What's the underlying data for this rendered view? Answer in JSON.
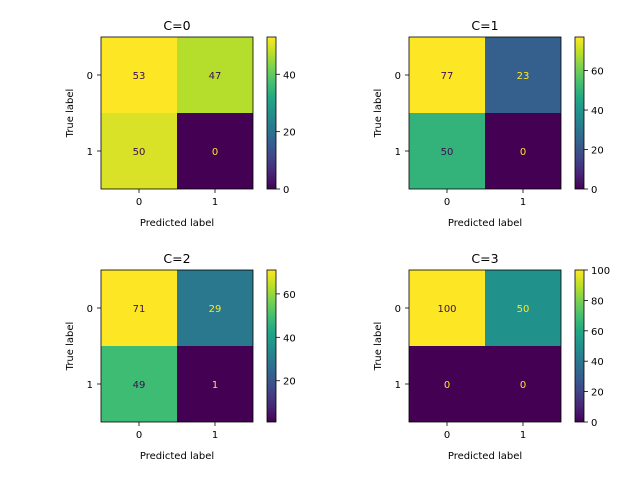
{
  "chart_data": [
    {
      "type": "heatmap",
      "title": "C=0",
      "xlabel": "Predicted label",
      "ylabel": "True label",
      "x_categories": [
        "0",
        "1"
      ],
      "y_categories": [
        "0",
        "1"
      ],
      "matrix": [
        [
          53,
          47
        ],
        [
          50,
          0
        ]
      ],
      "colormap": "viridis",
      "color_range": [
        0,
        53
      ],
      "colorbar_ticks": [
        0,
        20,
        40
      ]
    },
    {
      "type": "heatmap",
      "title": "C=1",
      "xlabel": "Predicted label",
      "ylabel": "True label",
      "x_categories": [
        "0",
        "1"
      ],
      "y_categories": [
        "0",
        "1"
      ],
      "matrix": [
        [
          77,
          23
        ],
        [
          50,
          0
        ]
      ],
      "colormap": "viridis",
      "color_range": [
        0,
        77
      ],
      "colorbar_ticks": [
        0,
        20,
        40,
        60
      ]
    },
    {
      "type": "heatmap",
      "title": "C=2",
      "xlabel": "Predicted label",
      "ylabel": "True label",
      "x_categories": [
        "0",
        "1"
      ],
      "y_categories": [
        "0",
        "1"
      ],
      "matrix": [
        [
          71,
          29
        ],
        [
          49,
          1
        ]
      ],
      "colormap": "viridis",
      "color_range": [
        1,
        71
      ],
      "colorbar_ticks": [
        20,
        40,
        60
      ]
    },
    {
      "type": "heatmap",
      "title": "C=3",
      "xlabel": "Predicted label",
      "ylabel": "True label",
      "x_categories": [
        "0",
        "1"
      ],
      "y_categories": [
        "0",
        "1"
      ],
      "matrix": [
        [
          100,
          50
        ],
        [
          0,
          0
        ]
      ],
      "colormap": "viridis",
      "color_range": [
        0,
        100
      ],
      "colorbar_ticks": [
        0,
        20,
        40,
        60,
        80,
        100
      ]
    }
  ]
}
